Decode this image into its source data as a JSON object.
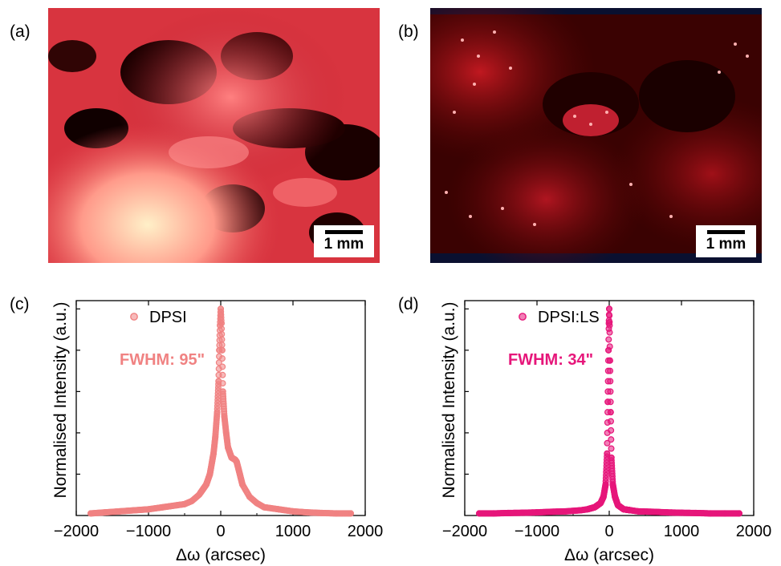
{
  "panels": {
    "a": {
      "label": "(a)",
      "scale_label": "1 mm"
    },
    "b": {
      "label": "(b)",
      "scale_label": "1 mm"
    },
    "c": {
      "label": "(c)"
    },
    "d": {
      "label": "(d)"
    }
  },
  "colors": {
    "dpsi": "#f08282",
    "dpsi_ls": "#e6167a",
    "micro_dark": "#1a0000",
    "micro_red": "#b3151f",
    "micro_pink": "#ff8a8a",
    "micro_bright": "#ffe0b0"
  },
  "chart_data": [
    {
      "type": "scatter",
      "panel": "c",
      "xlabel": "Δω (arcsec)",
      "ylabel": "Normalised Intensity (a.u.)",
      "xlim": [
        -2000,
        2000
      ],
      "xticks": [
        -2000,
        -1000,
        0,
        1000,
        2000
      ],
      "ylim": [
        0,
        1.04
      ],
      "yticks_unlabeled": true,
      "legend_location": "top-left",
      "annotation": "FWHM: 95\"",
      "series": [
        {
          "name": "DPSI",
          "color": "#f08282",
          "x": [
            -1800,
            -1600,
            -1400,
            -1200,
            -1000,
            -800,
            -700,
            -600,
            -500,
            -400,
            -300,
            -200,
            -150,
            -100,
            -75,
            -50,
            -30,
            -20,
            -10,
            0,
            10,
            20,
            30,
            50,
            75,
            100,
            150,
            200,
            220,
            250,
            300,
            400,
            500,
            600,
            800,
            1000,
            1200,
            1400,
            1600,
            1800
          ],
          "y": [
            0.01,
            0.015,
            0.02,
            0.025,
            0.03,
            0.04,
            0.045,
            0.05,
            0.055,
            0.07,
            0.1,
            0.15,
            0.2,
            0.3,
            0.38,
            0.5,
            0.65,
            0.8,
            0.92,
            1.0,
            0.93,
            0.8,
            0.6,
            0.48,
            0.4,
            0.33,
            0.28,
            0.27,
            0.26,
            0.22,
            0.15,
            0.09,
            0.06,
            0.04,
            0.03,
            0.02,
            0.015,
            0.012,
            0.01,
            0.01
          ]
        }
      ]
    },
    {
      "type": "scatter",
      "panel": "d",
      "xlabel": "Δω (arcsec)",
      "ylabel": "Normalised Intensity (a.u.)",
      "xlim": [
        -2000,
        2000
      ],
      "xticks": [
        -2000,
        -1000,
        0,
        1000,
        2000
      ],
      "ylim": [
        0,
        1.04
      ],
      "yticks_unlabeled": true,
      "legend_location": "top-left",
      "annotation": "FWHM: 34\"",
      "series": [
        {
          "name": "DPSI:LS",
          "color": "#e6167a",
          "x": [
            -1800,
            -1600,
            -1400,
            -1200,
            -1000,
            -800,
            -600,
            -400,
            -300,
            -200,
            -120,
            -80,
            -50,
            -30,
            -20,
            -10,
            -5,
            0,
            5,
            10,
            20,
            30,
            50,
            80,
            120,
            200,
            300,
            400,
            600,
            800,
            1000,
            1200,
            1400,
            1600,
            1800
          ],
          "y": [
            0.01,
            0.01,
            0.012,
            0.013,
            0.015,
            0.018,
            0.02,
            0.025,
            0.03,
            0.04,
            0.06,
            0.09,
            0.15,
            0.3,
            0.55,
            0.8,
            0.93,
            1.0,
            0.92,
            0.75,
            0.5,
            0.28,
            0.15,
            0.09,
            0.05,
            0.03,
            0.025,
            0.02,
            0.018,
            0.015,
            0.013,
            0.012,
            0.01,
            0.01,
            0.01
          ]
        }
      ]
    }
  ]
}
